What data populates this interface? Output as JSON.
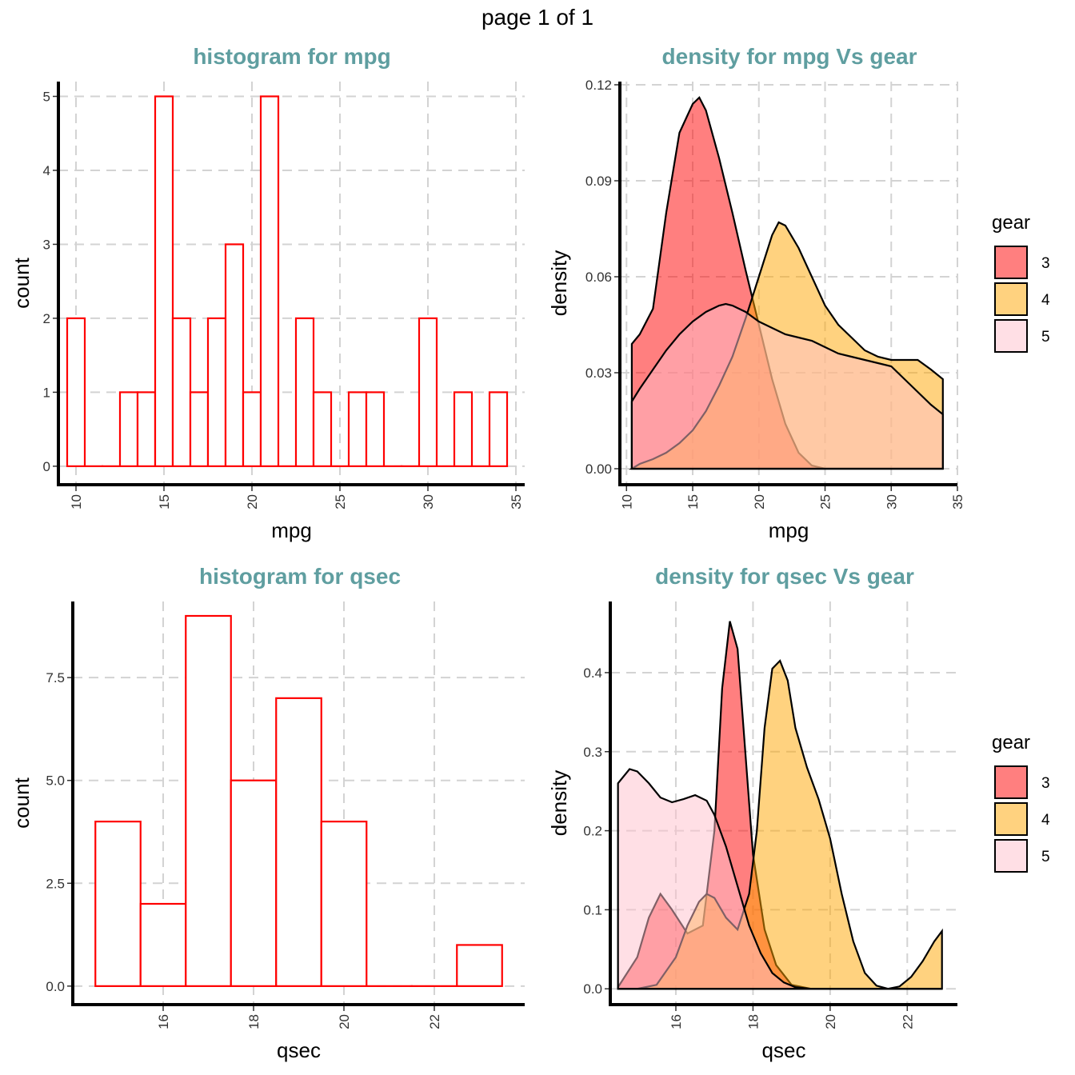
{
  "header": {
    "page_label": "page 1 of 1"
  },
  "legend": {
    "title": "gear",
    "levels": [
      "3",
      "4",
      "5"
    ],
    "colors": [
      "#ff0000",
      "#ffa500",
      "#ffc0cb"
    ]
  },
  "chart_data": [
    {
      "type": "bar",
      "id": "hist-mpg",
      "title": "histogram for mpg",
      "xlabel": "mpg",
      "ylabel": "count",
      "xlim": [
        9,
        35.5
      ],
      "ylim": [
        -0.25,
        5.2
      ],
      "xticks": [
        10,
        15,
        20,
        25,
        30,
        35
      ],
      "yticks": [
        0,
        1,
        2,
        3,
        4,
        5
      ],
      "bin_width": 1,
      "bin_centers": [
        10,
        11,
        12,
        13,
        14,
        15,
        16,
        17,
        18,
        19,
        20,
        21,
        22,
        23,
        24,
        25,
        26,
        27,
        28,
        29,
        30,
        31,
        32,
        33,
        34
      ],
      "values": [
        2,
        0,
        0,
        1,
        1,
        5,
        2,
        1,
        2,
        3,
        1,
        5,
        0,
        2,
        1,
        0,
        1,
        1,
        0,
        0,
        2,
        0,
        1,
        0,
        1
      ],
      "bar_color": "#ff0000"
    },
    {
      "type": "area",
      "id": "dens-mpg",
      "title": "density for mpg Vs gear",
      "xlabel": "mpg",
      "ylabel": "density",
      "xlim": [
        9.5,
        35
      ],
      "ylim": [
        -0.005,
        0.121
      ],
      "xticks": [
        10,
        15,
        20,
        25,
        30,
        35
      ],
      "yticks": [
        0.0,
        0.03,
        0.06,
        0.09,
        0.12
      ],
      "ytick_labels": [
        "0.00",
        "0.03",
        "0.06",
        "0.09",
        "0.12"
      ],
      "series": [
        {
          "name": "3",
          "x": [
            10.4,
            11,
            12,
            13,
            14,
            15,
            15.5,
            16,
            17,
            18,
            19,
            20,
            21,
            22,
            23,
            24,
            25,
            26,
            27,
            28,
            29,
            30,
            31,
            32,
            33,
            33.9
          ],
          "y": [
            0.039,
            0.042,
            0.05,
            0.08,
            0.105,
            0.114,
            0.116,
            0.112,
            0.097,
            0.08,
            0.062,
            0.045,
            0.028,
            0.014,
            0.005,
            0.001,
            0,
            0,
            0,
            0,
            0,
            0,
            0,
            0,
            0,
            0
          ]
        },
        {
          "name": "4",
          "x": [
            10.4,
            11,
            12,
            13,
            14,
            15,
            16,
            17,
            18,
            19,
            20,
            21,
            21.5,
            22,
            23,
            24,
            25,
            26,
            27,
            28,
            29,
            30,
            31,
            32,
            33,
            33.9
          ],
          "y": [
            0,
            0.0015,
            0.003,
            0.005,
            0.008,
            0.012,
            0.018,
            0.026,
            0.035,
            0.047,
            0.06,
            0.073,
            0.077,
            0.076,
            0.069,
            0.06,
            0.051,
            0.045,
            0.041,
            0.037,
            0.035,
            0.034,
            0.034,
            0.034,
            0.031,
            0.028
          ]
        },
        {
          "name": "5",
          "x": [
            10.4,
            11,
            12,
            13,
            14,
            15,
            16,
            17,
            17.5,
            18,
            19,
            20,
            21,
            22,
            23,
            24,
            25,
            26,
            27,
            28,
            29,
            30,
            31,
            32,
            33,
            33.9
          ],
          "y": [
            0.021,
            0.025,
            0.031,
            0.037,
            0.042,
            0.046,
            0.049,
            0.051,
            0.0515,
            0.051,
            0.049,
            0.046,
            0.044,
            0.042,
            0.041,
            0.04,
            0.038,
            0.036,
            0.035,
            0.034,
            0.033,
            0.032,
            0.028,
            0.024,
            0.02,
            0.017
          ]
        }
      ]
    },
    {
      "type": "bar",
      "id": "hist-qsec",
      "title": "histogram for qsec",
      "xlabel": "qsec",
      "ylabel": "count",
      "xlim": [
        14,
        24
      ],
      "ylim": [
        -0.45,
        9.35
      ],
      "xticks": [
        16,
        18,
        20,
        22
      ],
      "yticks": [
        0.0,
        2.5,
        5.0,
        7.5
      ],
      "ytick_labels": [
        "0.0",
        "2.5",
        "5.0",
        "7.5"
      ],
      "bin_width": 1,
      "bin_centers": [
        15,
        16,
        17,
        18,
        19,
        20,
        21,
        22,
        23
      ],
      "values": [
        4,
        2,
        9,
        5,
        7,
        4,
        0,
        0,
        1
      ],
      "bar_color": "#ff0000"
    },
    {
      "type": "area",
      "id": "dens-qsec",
      "title": "density for qsec Vs gear",
      "xlabel": "qsec",
      "ylabel": "density",
      "xlim": [
        14.3,
        23.3
      ],
      "ylim": [
        -0.02,
        0.49
      ],
      "xticks": [
        16,
        18,
        20,
        22
      ],
      "yticks": [
        0.0,
        0.1,
        0.2,
        0.3,
        0.4
      ],
      "ytick_labels": [
        "0.0",
        "0.1",
        "0.2",
        "0.3",
        "0.4"
      ],
      "series": [
        {
          "name": "3",
          "x": [
            14.5,
            15,
            15.3,
            15.6,
            15.9,
            16.3,
            16.7,
            17,
            17.2,
            17.4,
            17.6,
            17.8,
            18,
            18.3,
            18.6,
            19,
            19.5,
            20,
            20.4,
            20.8,
            21.2,
            21.6,
            22,
            22.4,
            22.9
          ],
          "y": [
            0.002,
            0.04,
            0.09,
            0.12,
            0.1,
            0.07,
            0.08,
            0.2,
            0.38,
            0.465,
            0.43,
            0.3,
            0.17,
            0.075,
            0.03,
            0.005,
            0,
            0,
            0,
            0,
            0,
            0,
            0,
            0,
            0
          ]
        },
        {
          "name": "4",
          "x": [
            14.5,
            15,
            15.5,
            16,
            16.3,
            16.6,
            16.8,
            17,
            17.3,
            17.6,
            17.9,
            18.1,
            18.3,
            18.5,
            18.7,
            18.9,
            19.1,
            19.4,
            19.7,
            20,
            20.3,
            20.6,
            20.9,
            21.2,
            21.5,
            21.8,
            22.1,
            22.4,
            22.7,
            22.9
          ],
          "y": [
            0,
            0,
            0.005,
            0.04,
            0.08,
            0.11,
            0.12,
            0.115,
            0.09,
            0.075,
            0.12,
            0.2,
            0.33,
            0.405,
            0.415,
            0.39,
            0.33,
            0.28,
            0.24,
            0.19,
            0.12,
            0.06,
            0.02,
            0.004,
            0,
            0.003,
            0.015,
            0.035,
            0.06,
            0.073
          ]
        },
        {
          "name": "5",
          "x": [
            14.5,
            14.8,
            15,
            15.3,
            15.6,
            15.9,
            16.2,
            16.5,
            16.8,
            17,
            17.3,
            17.6,
            17.9,
            18.2,
            18.5,
            18.8,
            19.1,
            19.5,
            19.9,
            20.3,
            20.7,
            21.1,
            21.5,
            21.9,
            22.3,
            22.9
          ],
          "y": [
            0.26,
            0.278,
            0.275,
            0.26,
            0.242,
            0.236,
            0.24,
            0.245,
            0.238,
            0.22,
            0.18,
            0.13,
            0.08,
            0.045,
            0.02,
            0.008,
            0.002,
            0,
            0,
            0,
            0,
            0,
            0,
            0,
            0,
            0
          ]
        }
      ]
    }
  ]
}
